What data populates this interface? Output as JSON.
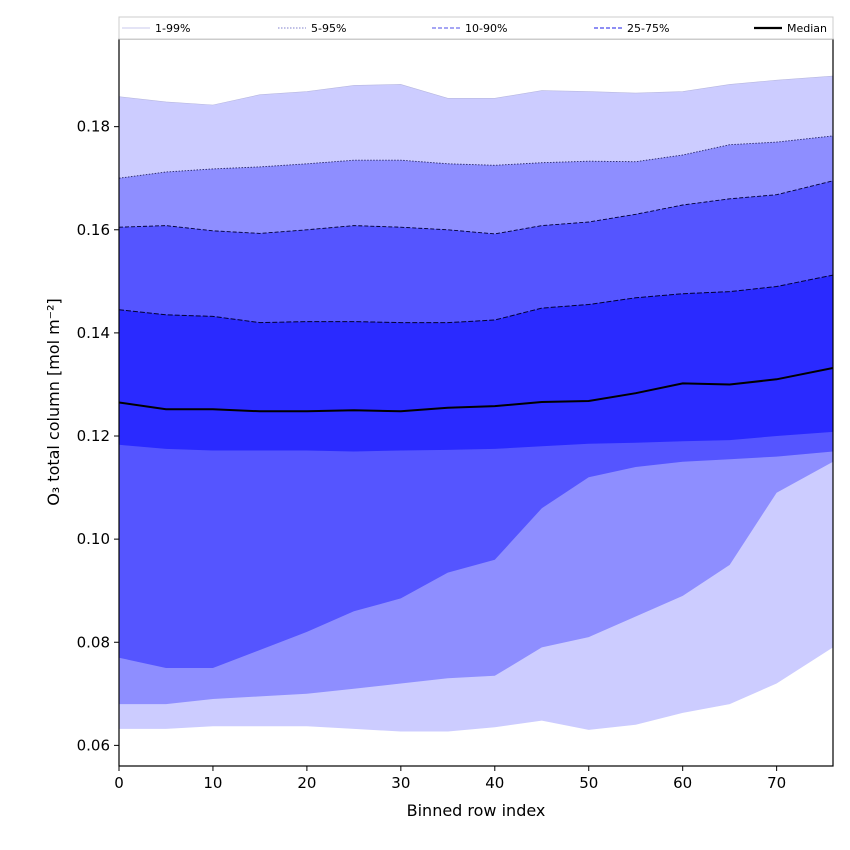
{
  "chart_data": {
    "type": "area",
    "title": "",
    "xlabel": "Binned row index",
    "ylabel": "O₃ total column [mol m⁻²]",
    "xlim": [
      0,
      76
    ],
    "ylim": [
      0.056,
      0.197
    ],
    "xticks": [
      0,
      10,
      20,
      30,
      40,
      50,
      60,
      70
    ],
    "yticks": [
      0.06,
      0.08,
      0.1,
      0.12,
      0.14,
      0.16,
      0.18
    ],
    "ytick_labels": [
      "0.06",
      "0.08",
      "0.10",
      "0.12",
      "0.14",
      "0.16",
      "0.18"
    ],
    "grid": false,
    "legend_position": "top",
    "colors": {
      "band_1_99": "#ccccff",
      "band_5_95": "#8e8eff",
      "band_10_90": "#5555ff",
      "band_25_75": "#2a2aff",
      "median": "#000000"
    },
    "legend": [
      {
        "label": "1-99%",
        "style": "solid-thin-light"
      },
      {
        "label": "5-95%",
        "style": "dotted-thin"
      },
      {
        "label": "10-90%",
        "style": "dashed"
      },
      {
        "label": "25-75%",
        "style": "dashed"
      },
      {
        "label": "Median",
        "style": "solid-black"
      }
    ],
    "x": [
      0,
      5,
      10,
      15,
      20,
      25,
      30,
      35,
      40,
      45,
      50,
      55,
      60,
      65,
      70,
      76
    ],
    "series": [
      {
        "name": "Median",
        "values": [
          0.1265,
          0.1252,
          0.1252,
          0.1248,
          0.1248,
          0.125,
          0.1248,
          0.1255,
          0.1258,
          0.1266,
          0.1268,
          0.1283,
          0.1302,
          0.13,
          0.131,
          0.1332
        ]
      },
      {
        "name": "25-75%",
        "lower": [
          0.1183,
          0.1175,
          0.1172,
          0.1172,
          0.1172,
          0.117,
          0.1172,
          0.1173,
          0.1175,
          0.118,
          0.1185,
          0.1187,
          0.119,
          0.1192,
          0.12,
          0.1208
        ],
        "upper": [
          0.1445,
          0.1435,
          0.1432,
          0.142,
          0.1422,
          0.1422,
          0.142,
          0.142,
          0.1425,
          0.1448,
          0.1455,
          0.1468,
          0.1476,
          0.148,
          0.149,
          0.1512
        ]
      },
      {
        "name": "10-90%",
        "lower": [
          0.077,
          0.075,
          0.075,
          0.0785,
          0.082,
          0.086,
          0.0885,
          0.0935,
          0.096,
          0.106,
          0.112,
          0.114,
          0.115,
          0.1155,
          0.116,
          0.117
        ],
        "upper": [
          0.1605,
          0.1608,
          0.1598,
          0.1593,
          0.16,
          0.1608,
          0.1605,
          0.16,
          0.1592,
          0.1608,
          0.1615,
          0.163,
          0.1648,
          0.166,
          0.1668,
          0.1695
        ]
      },
      {
        "name": "5-95%",
        "lower": [
          0.068,
          0.068,
          0.069,
          0.0695,
          0.07,
          0.071,
          0.072,
          0.073,
          0.0735,
          0.079,
          0.081,
          0.085,
          0.089,
          0.095,
          0.109,
          0.115
        ],
        "upper": [
          0.17,
          0.1712,
          0.1718,
          0.1722,
          0.1728,
          0.1735,
          0.1735,
          0.1728,
          0.1725,
          0.173,
          0.1733,
          0.1732,
          0.1745,
          0.1765,
          0.177,
          0.1782
        ]
      },
      {
        "name": "1-99%",
        "lower": [
          0.0632,
          0.0632,
          0.0637,
          0.0637,
          0.0637,
          0.0632,
          0.0627,
          0.0627,
          0.0635,
          0.0648,
          0.063,
          0.064,
          0.0663,
          0.068,
          0.072,
          0.079
        ],
        "upper": [
          0.1858,
          0.1848,
          0.1842,
          0.1862,
          0.1868,
          0.188,
          0.1882,
          0.1855,
          0.1855,
          0.187,
          0.1868,
          0.1865,
          0.1868,
          0.1882,
          0.189,
          0.1898
        ]
      }
    ]
  }
}
